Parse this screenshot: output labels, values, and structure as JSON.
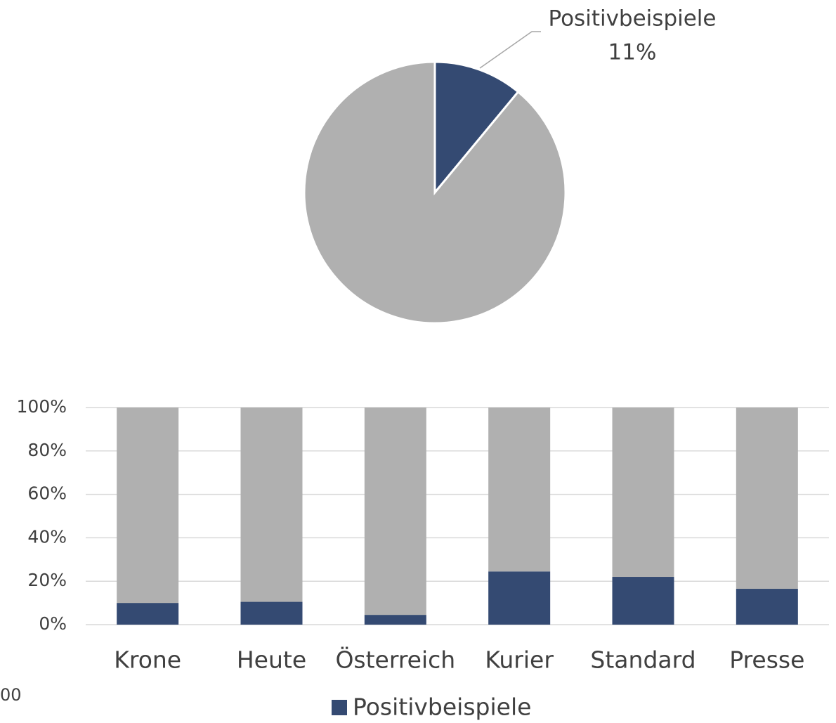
{
  "chart_data": [
    {
      "type": "pie",
      "categories": [
        "Positivbeispiele",
        null
      ],
      "values": [
        11,
        89
      ],
      "value_labels": [
        "11%",
        null
      ],
      "colors": [
        "#344a72",
        "#b0b0b0"
      ]
    },
    {
      "type": "bar",
      "stacked": true,
      "categories": [
        "Krone",
        "Heute",
        "Österreich",
        "Kurier",
        "Standard",
        "Presse"
      ],
      "series": [
        {
          "name": "Positivbeispiele",
          "color": "#344a72",
          "values": [
            10,
            10.5,
            4.5,
            24.5,
            22,
            16.5
          ]
        },
        {
          "name": null,
          "color": "#b0b0b0",
          "values": [
            90,
            89.5,
            95.5,
            75.5,
            78,
            83.5
          ]
        }
      ],
      "ylim": [
        0,
        100
      ],
      "yticks": [
        {
          "value": 0,
          "label": "0%"
        },
        {
          "value": 20,
          "label": "20%"
        },
        {
          "value": 40,
          "label": "40%"
        },
        {
          "value": 60,
          "label": "60%"
        },
        {
          "value": 80,
          "label": "80%"
        },
        {
          "value": 100,
          "label": "100%"
        }
      ],
      "grid": true,
      "legend": "bottom"
    }
  ],
  "fragment": "00"
}
